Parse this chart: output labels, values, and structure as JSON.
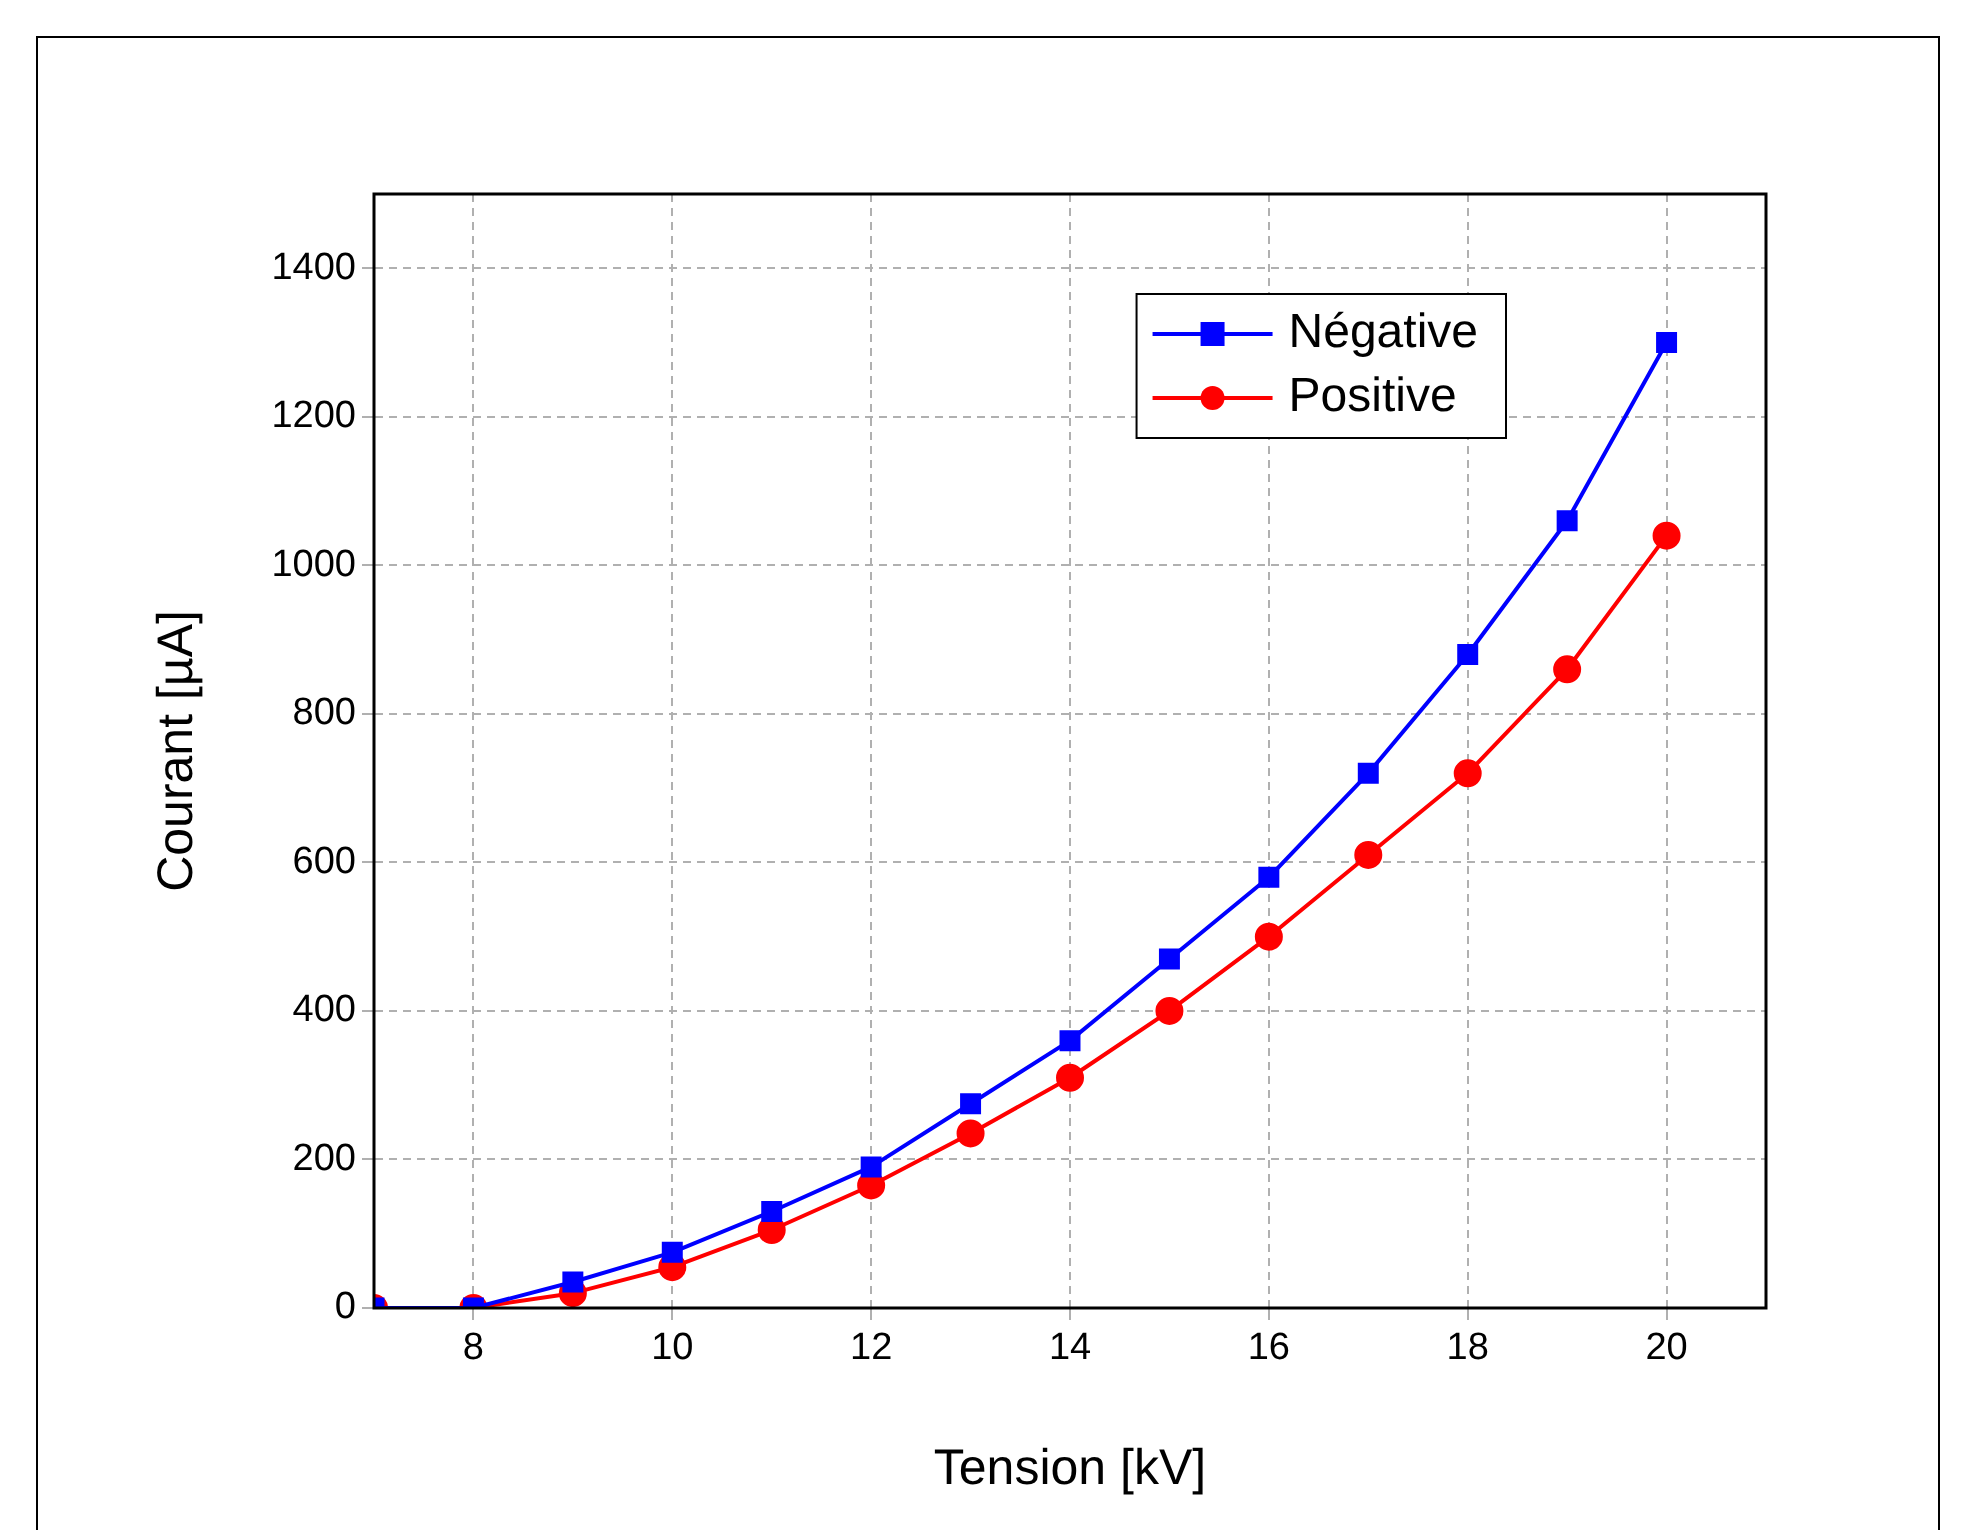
{
  "chart_data": {
    "type": "line",
    "xlabel": "Tension [kV]",
    "ylabel": "Courant [µA]",
    "x": [
      7,
      8,
      9,
      10,
      11,
      12,
      13,
      14,
      15,
      16,
      17,
      18,
      19,
      20
    ],
    "series": [
      {
        "name": "Négative",
        "color": "#0000ff",
        "marker": "square",
        "values": [
          0,
          0,
          35,
          75,
          130,
          190,
          275,
          360,
          470,
          580,
          720,
          880,
          1060,
          1300
        ]
      },
      {
        "name": "Positive",
        "color": "#ff0000",
        "marker": "circle",
        "values": [
          0,
          0,
          20,
          55,
          105,
          165,
          235,
          310,
          400,
          500,
          610,
          720,
          860,
          1040
        ]
      }
    ],
    "xlim": [
      7,
      21
    ],
    "xticks": [
      8,
      10,
      12,
      14,
      16,
      18,
      20
    ],
    "ylim": [
      0,
      1500
    ],
    "yticks": [
      0,
      200,
      400,
      600,
      800,
      1000,
      1200,
      1400
    ],
    "grid": true,
    "legend": "top right",
    "line_style": "solid"
  }
}
